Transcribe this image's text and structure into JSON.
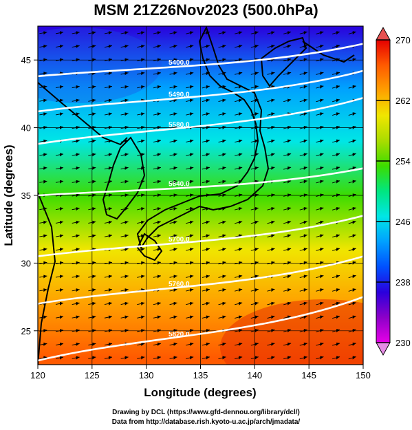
{
  "chart_data": {
    "type": "heatmap",
    "title": "MSM 21Z26Nov2023 (500.0hPa)",
    "xlabel": "Longitude (degrees)",
    "ylabel": "Latitude  (degrees)",
    "xlim": [
      120,
      150
    ],
    "ylim": [
      22.5,
      47.5
    ],
    "xticks": [
      "120",
      "125",
      "130",
      "135",
      "140",
      "145",
      "150"
    ],
    "yticks": [
      "25",
      "30",
      "35",
      "40",
      "45"
    ],
    "colorbar": {
      "min": 230,
      "max": 270,
      "ticks": [
        "230",
        "238",
        "246",
        "254",
        "262",
        "270"
      ],
      "colors": [
        "#e600e6",
        "#8c00c8",
        "#2a00dc",
        "#0050ff",
        "#00a0ff",
        "#00e6e6",
        "#00e680",
        "#3cdc00",
        "#aadc00",
        "#f0e600",
        "#ffa000",
        "#ff5a00",
        "#e60000"
      ]
    },
    "temperature_gradient": [
      {
        "lat": 47.5,
        "value": 236
      },
      {
        "lat": 43,
        "value": 242
      },
      {
        "lat": 39,
        "value": 248
      },
      {
        "lat": 35,
        "value": 254
      },
      {
        "lat": 31,
        "value": 259
      },
      {
        "lat": 27,
        "value": 264
      },
      {
        "lat": 23,
        "value": 268
      }
    ],
    "contours": [
      {
        "label": "5400.0",
        "lat_west": 43.8,
        "lat_east": 46.2
      },
      {
        "label": "5490.0",
        "lat_west": 41.2,
        "lat_east": 44.2
      },
      {
        "label": "5580.0",
        "lat_west": 38.8,
        "lat_east": 42.2
      },
      {
        "label": "5640.0",
        "lat_west": 35.0,
        "lat_east": 37.0
      },
      {
        "label": "5700.0",
        "lat_west": 30.5,
        "lat_east": 33.5
      },
      {
        "label": "5760.0",
        "lat_west": 27.0,
        "lat_east": 30.5
      },
      {
        "label": "5820.0",
        "lat_west": 22.8,
        "lat_east": 27.5
      }
    ],
    "wind": {
      "direction": "westerly",
      "arrow_spacing_deg": 1.0
    }
  },
  "credits": {
    "line1": "Drawing by DCL (https://www.gfd-dennou.org/library/dcl/)",
    "line2": "Data from http://database.rish.kyoto-u.ac.jp/arch/jmadata/"
  }
}
